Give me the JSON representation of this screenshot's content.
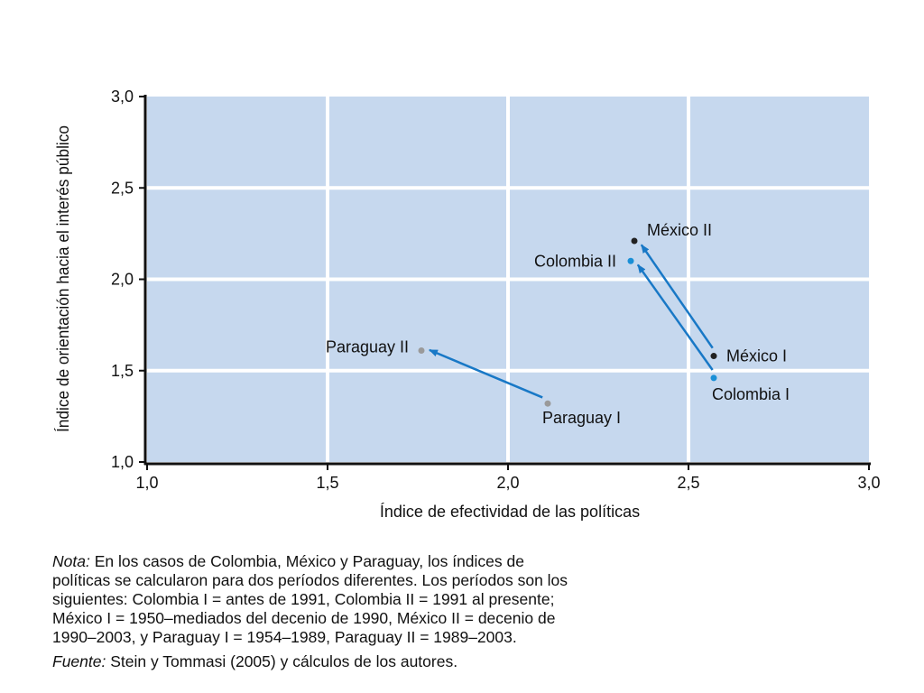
{
  "chart_data": {
    "type": "scatter",
    "xlabel": "Índice de efectividad de las políticas",
    "ylabel": "Índice de orientación hacia el interés público",
    "xlim": [
      1.0,
      3.0
    ],
    "ylim": [
      1.0,
      3.0
    ],
    "x_ticks": [
      "1,0",
      "1,5",
      "2,0",
      "2,5",
      "3,0"
    ],
    "y_ticks": [
      "1,0",
      "1,5",
      "2,0",
      "2,5",
      "3,0"
    ],
    "grid": true,
    "points": [
      {
        "label": "México I",
        "x": 2.57,
        "y": 1.58,
        "color": "#222222"
      },
      {
        "label": "México II",
        "x": 2.35,
        "y": 2.21,
        "color": "#222222"
      },
      {
        "label": "Colombia I",
        "x": 2.57,
        "y": 1.46,
        "color": "#1a8fd6"
      },
      {
        "label": "Colombia II",
        "x": 2.34,
        "y": 2.1,
        "color": "#1a8fd6"
      },
      {
        "label": "Paraguay I",
        "x": 2.11,
        "y": 1.32,
        "color": "#9a9a9a"
      },
      {
        "label": "Paraguay II",
        "x": 1.76,
        "y": 1.61,
        "color": "#9a9a9a"
      }
    ],
    "arrows": [
      {
        "from": "México I",
        "to": "México II"
      },
      {
        "from": "Colombia I",
        "to": "Colombia II"
      },
      {
        "from": "Paraguay I",
        "to": "Paraguay II"
      }
    ],
    "colors": {
      "plot_bg": "#c6d8ee",
      "grid": "#ffffff",
      "arrow": "#1878c6"
    }
  },
  "notes": {
    "nota_label": "Nota:",
    "nota_lines": [
      " En los casos de Colombia, México y Paraguay, los índices de",
      "políticas se calcularon para dos períodos diferentes. Los períodos son los",
      "siguientes: Colombia I = antes de 1991, Colombia II = 1991 al presente;",
      "México I = 1950–mediados del decenio de 1990, México II = decenio de",
      "1990–2003, y Paraguay I = 1954–1989, Paraguay II = 1989–2003."
    ],
    "fuente_label": "Fuente:",
    "fuente_text": " Stein y Tommasi (2005) y cálculos de los autores."
  }
}
